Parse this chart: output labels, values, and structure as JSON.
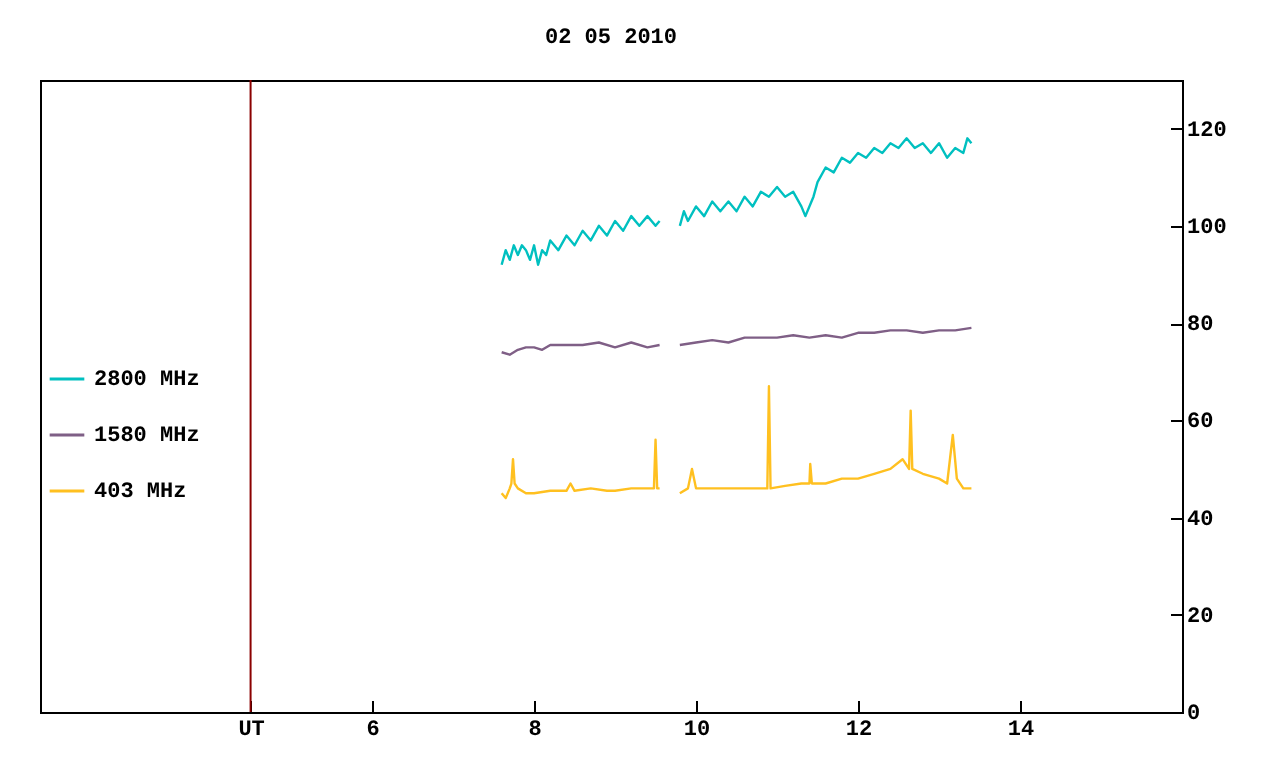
{
  "chart_data": {
    "type": "line",
    "title": "02 05 2010",
    "xlim": [
      1.9,
      16
    ],
    "xticks": [
      {
        "value": 4.5,
        "label": "UT"
      },
      6,
      8,
      10,
      12,
      14
    ],
    "ylim": [
      0,
      130
    ],
    "yticks": [
      0,
      20,
      40,
      60,
      80,
      100,
      120
    ],
    "grid": false,
    "legend": "left",
    "ref_lines": [
      {
        "axis": "x",
        "value": 4.5,
        "label": null,
        "color": "#8b0000"
      }
    ],
    "series": [
      {
        "name": "2800 MHz",
        "color": "#00c0c0",
        "x": [
          7.6,
          7.65,
          7.7,
          7.75,
          7.8,
          7.85,
          7.9,
          7.95,
          8.0,
          8.05,
          8.1,
          8.15,
          8.2,
          8.3,
          8.4,
          8.5,
          8.6,
          8.7,
          8.8,
          8.9,
          9.0,
          9.1,
          9.2,
          9.3,
          9.4,
          9.5,
          9.55,
          9.7,
          9.8,
          9.85,
          9.9,
          10.0,
          10.1,
          10.2,
          10.3,
          10.4,
          10.5,
          10.6,
          10.7,
          10.8,
          10.9,
          11.0,
          11.1,
          11.2,
          11.3,
          11.35,
          11.45,
          11.5,
          11.6,
          11.7,
          11.8,
          11.9,
          12.0,
          12.1,
          12.2,
          12.3,
          12.4,
          12.5,
          12.6,
          12.7,
          12.8,
          12.9,
          13.0,
          13.1,
          13.2,
          13.3,
          13.35,
          13.4
        ],
        "values": [
          92,
          95,
          93,
          96,
          94,
          96,
          95,
          93,
          96,
          92,
          95,
          94,
          97,
          95,
          98,
          96,
          99,
          97,
          100,
          98,
          101,
          99,
          102,
          100,
          102,
          100,
          101,
          null,
          100,
          103,
          101,
          104,
          102,
          105,
          103,
          105,
          103,
          106,
          104,
          107,
          106,
          108,
          106,
          107,
          104,
          102,
          106,
          109,
          112,
          111,
          114,
          113,
          115,
          114,
          116,
          115,
          117,
          116,
          118,
          116,
          117,
          115,
          117,
          114,
          116,
          115,
          118,
          117
        ]
      },
      {
        "name": "1580 MHz",
        "color": "#7f5f86",
        "x": [
          7.6,
          7.7,
          7.8,
          7.9,
          8.0,
          8.1,
          8.2,
          8.4,
          8.6,
          8.8,
          9.0,
          9.2,
          9.4,
          9.55,
          9.7,
          9.8,
          10.0,
          10.2,
          10.4,
          10.6,
          10.8,
          11.0,
          11.2,
          11.4,
          11.6,
          11.8,
          12.0,
          12.2,
          12.4,
          12.6,
          12.8,
          13.0,
          13.2,
          13.4
        ],
        "values": [
          74,
          73.5,
          74.5,
          75,
          75,
          74.5,
          75.5,
          75.5,
          75.5,
          76,
          75,
          76,
          75,
          75.5,
          null,
          75.5,
          76,
          76.5,
          76,
          77,
          77,
          77,
          77.5,
          77,
          77.5,
          77,
          78,
          78,
          78.5,
          78.5,
          78,
          78.5,
          78.5,
          79
        ]
      },
      {
        "name": "403 MHz",
        "color": "#ffc020",
        "x": [
          7.6,
          7.65,
          7.7,
          7.72,
          7.74,
          7.76,
          7.8,
          7.9,
          8.0,
          8.2,
          8.4,
          8.45,
          8.5,
          8.7,
          8.9,
          9.0,
          9.2,
          9.4,
          9.48,
          9.5,
          9.52,
          9.55,
          9.7,
          9.8,
          9.9,
          9.95,
          10.0,
          10.2,
          10.4,
          10.6,
          10.8,
          10.88,
          10.9,
          10.92,
          11.1,
          11.3,
          11.4,
          11.41,
          11.43,
          11.6,
          11.8,
          12.0,
          12.2,
          12.4,
          12.55,
          12.63,
          12.65,
          12.67,
          12.8,
          13.0,
          13.1,
          13.17,
          13.22,
          13.3,
          13.4
        ],
        "values": [
          45,
          44,
          46,
          47,
          52,
          47,
          46,
          45,
          45,
          45.5,
          45.5,
          47,
          45.5,
          46,
          45.5,
          45.5,
          46,
          46,
          46,
          56,
          46,
          46,
          null,
          45,
          46,
          50,
          46,
          46,
          46,
          46,
          46,
          46,
          67,
          46,
          46.5,
          47,
          47,
          51,
          47,
          47,
          48,
          48,
          49,
          50,
          52,
          50,
          62,
          50,
          49,
          48,
          47,
          57,
          48,
          46,
          46
        ]
      }
    ]
  }
}
